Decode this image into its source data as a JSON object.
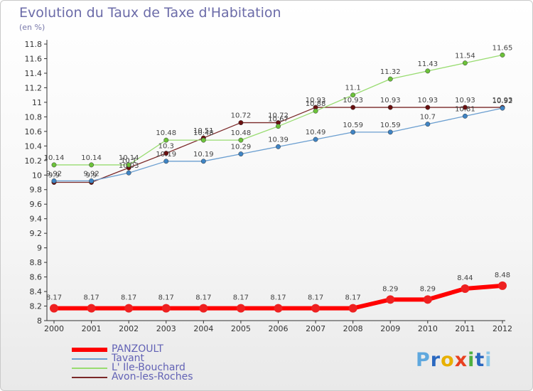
{
  "title": "Evolution du Taux de Taxe d'Habitation",
  "subtitle": "(en %)",
  "logo": "Proxiti",
  "logo_colors": [
    "#5fa8de",
    "#2a68c0",
    "#e8b000",
    "#e84020",
    "#4fb040",
    "#2a68c0",
    "#8cc8e8"
  ],
  "chart_data": {
    "type": "line",
    "title": "Evolution du Taux de Taxe d'Habitation",
    "ylabel": "(en %)",
    "xlabel": "",
    "ylim": [
      8,
      11.8
    ],
    "ytick_step": 0.2,
    "yticks": [
      "8",
      "8.2",
      "8.4",
      "8.6",
      "8.8",
      "9",
      "9.2",
      "9.4",
      "9.6",
      "9.8",
      "10",
      "10.2",
      "10.4",
      "10.6",
      "10.8",
      "11",
      "11.2",
      "11.4",
      "11.6",
      "11.8"
    ],
    "x": [
      "2000",
      "2001",
      "2002",
      "2003",
      "2004",
      "2005",
      "2006",
      "2007",
      "2008",
      "2009",
      "2010",
      "2011",
      "2012"
    ],
    "grid": false,
    "legend": "bottom-left",
    "series": [
      {
        "name": "PANZOULT",
        "color": "#ff0000",
        "marker": "#ee2020",
        "width": 6,
        "values": [
          8.17,
          8.17,
          8.17,
          8.17,
          8.17,
          8.17,
          8.17,
          8.17,
          8.17,
          8.29,
          8.29,
          8.44,
          8.48
        ]
      },
      {
        "name": "Tavant",
        "color": "#6a9ed0",
        "marker": "#3f84c4",
        "width": 1.3,
        "values": [
          9.92,
          9.92,
          10.03,
          10.19,
          10.19,
          10.29,
          10.39,
          10.49,
          10.59,
          10.59,
          10.7,
          10.81,
          10.92
        ]
      },
      {
        "name": "L' Ile-Bouchard",
        "color": "#98dc70",
        "marker": "#6cc23a",
        "width": 1.3,
        "values": [
          10.14,
          10.14,
          10.14,
          10.48,
          10.48,
          10.48,
          10.67,
          10.88,
          11.1,
          11.32,
          11.43,
          11.54,
          11.65
        ]
      },
      {
        "name": "Avon-les-Roches",
        "color": "#7a2828",
        "marker": "#6a1010",
        "width": 1.3,
        "values": [
          9.9,
          9.9,
          10.1,
          10.3,
          10.51,
          10.72,
          10.72,
          10.93,
          10.93,
          10.93,
          10.93,
          10.93,
          10.93
        ]
      }
    ]
  }
}
